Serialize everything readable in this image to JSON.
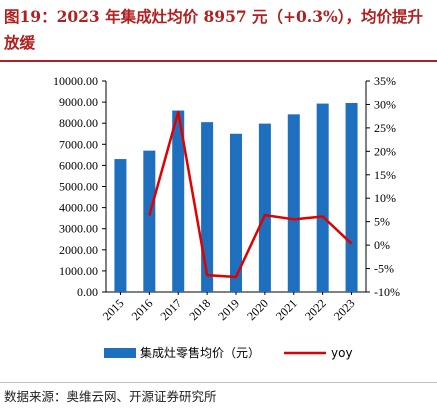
{
  "title": "图19：2023 年集成灶均价 8957 元（+0.3%），均价提升放缓",
  "source": "数据来源：奥维云网、开源证券研究所",
  "chart_data": {
    "type": "bar+line",
    "categories": [
      "2015",
      "2016",
      "2017",
      "2018",
      "2019",
      "2020",
      "2021",
      "2022",
      "2023"
    ],
    "series": [
      {
        "name": "集成灶零售均价（元）",
        "type": "bar",
        "axis": "left",
        "color": "#1f6fbf",
        "values": [
          6300,
          6700,
          8600,
          8050,
          7500,
          7980,
          8420,
          8930,
          8957
        ]
      },
      {
        "name": "yoy",
        "type": "line",
        "axis": "right",
        "color": "#e00000",
        "values": [
          null,
          6.3,
          28.4,
          -6.4,
          -6.8,
          6.4,
          5.5,
          6.1,
          0.3
        ]
      }
    ],
    "left_axis": {
      "ylim": [
        0,
        10000
      ],
      "ticks": [
        0,
        1000,
        2000,
        3000,
        4000,
        5000,
        6000,
        7000,
        8000,
        9000,
        10000
      ],
      "tick_labels": [
        "0.00",
        "1000.00",
        "2000.00",
        "3000.00",
        "4000.00",
        "5000.00",
        "6000.00",
        "7000.00",
        "8000.00",
        "9000.00",
        "10000.00"
      ]
    },
    "right_axis": {
      "ylim": [
        -10,
        35
      ],
      "ticks": [
        -10,
        -5,
        0,
        5,
        10,
        15,
        20,
        25,
        30,
        35
      ],
      "tick_labels": [
        "-10%",
        "-5%",
        "0%",
        "5%",
        "10%",
        "15%",
        "20%",
        "25%",
        "30%",
        "35%"
      ]
    },
    "grid": false,
    "legend_position": "bottom"
  }
}
